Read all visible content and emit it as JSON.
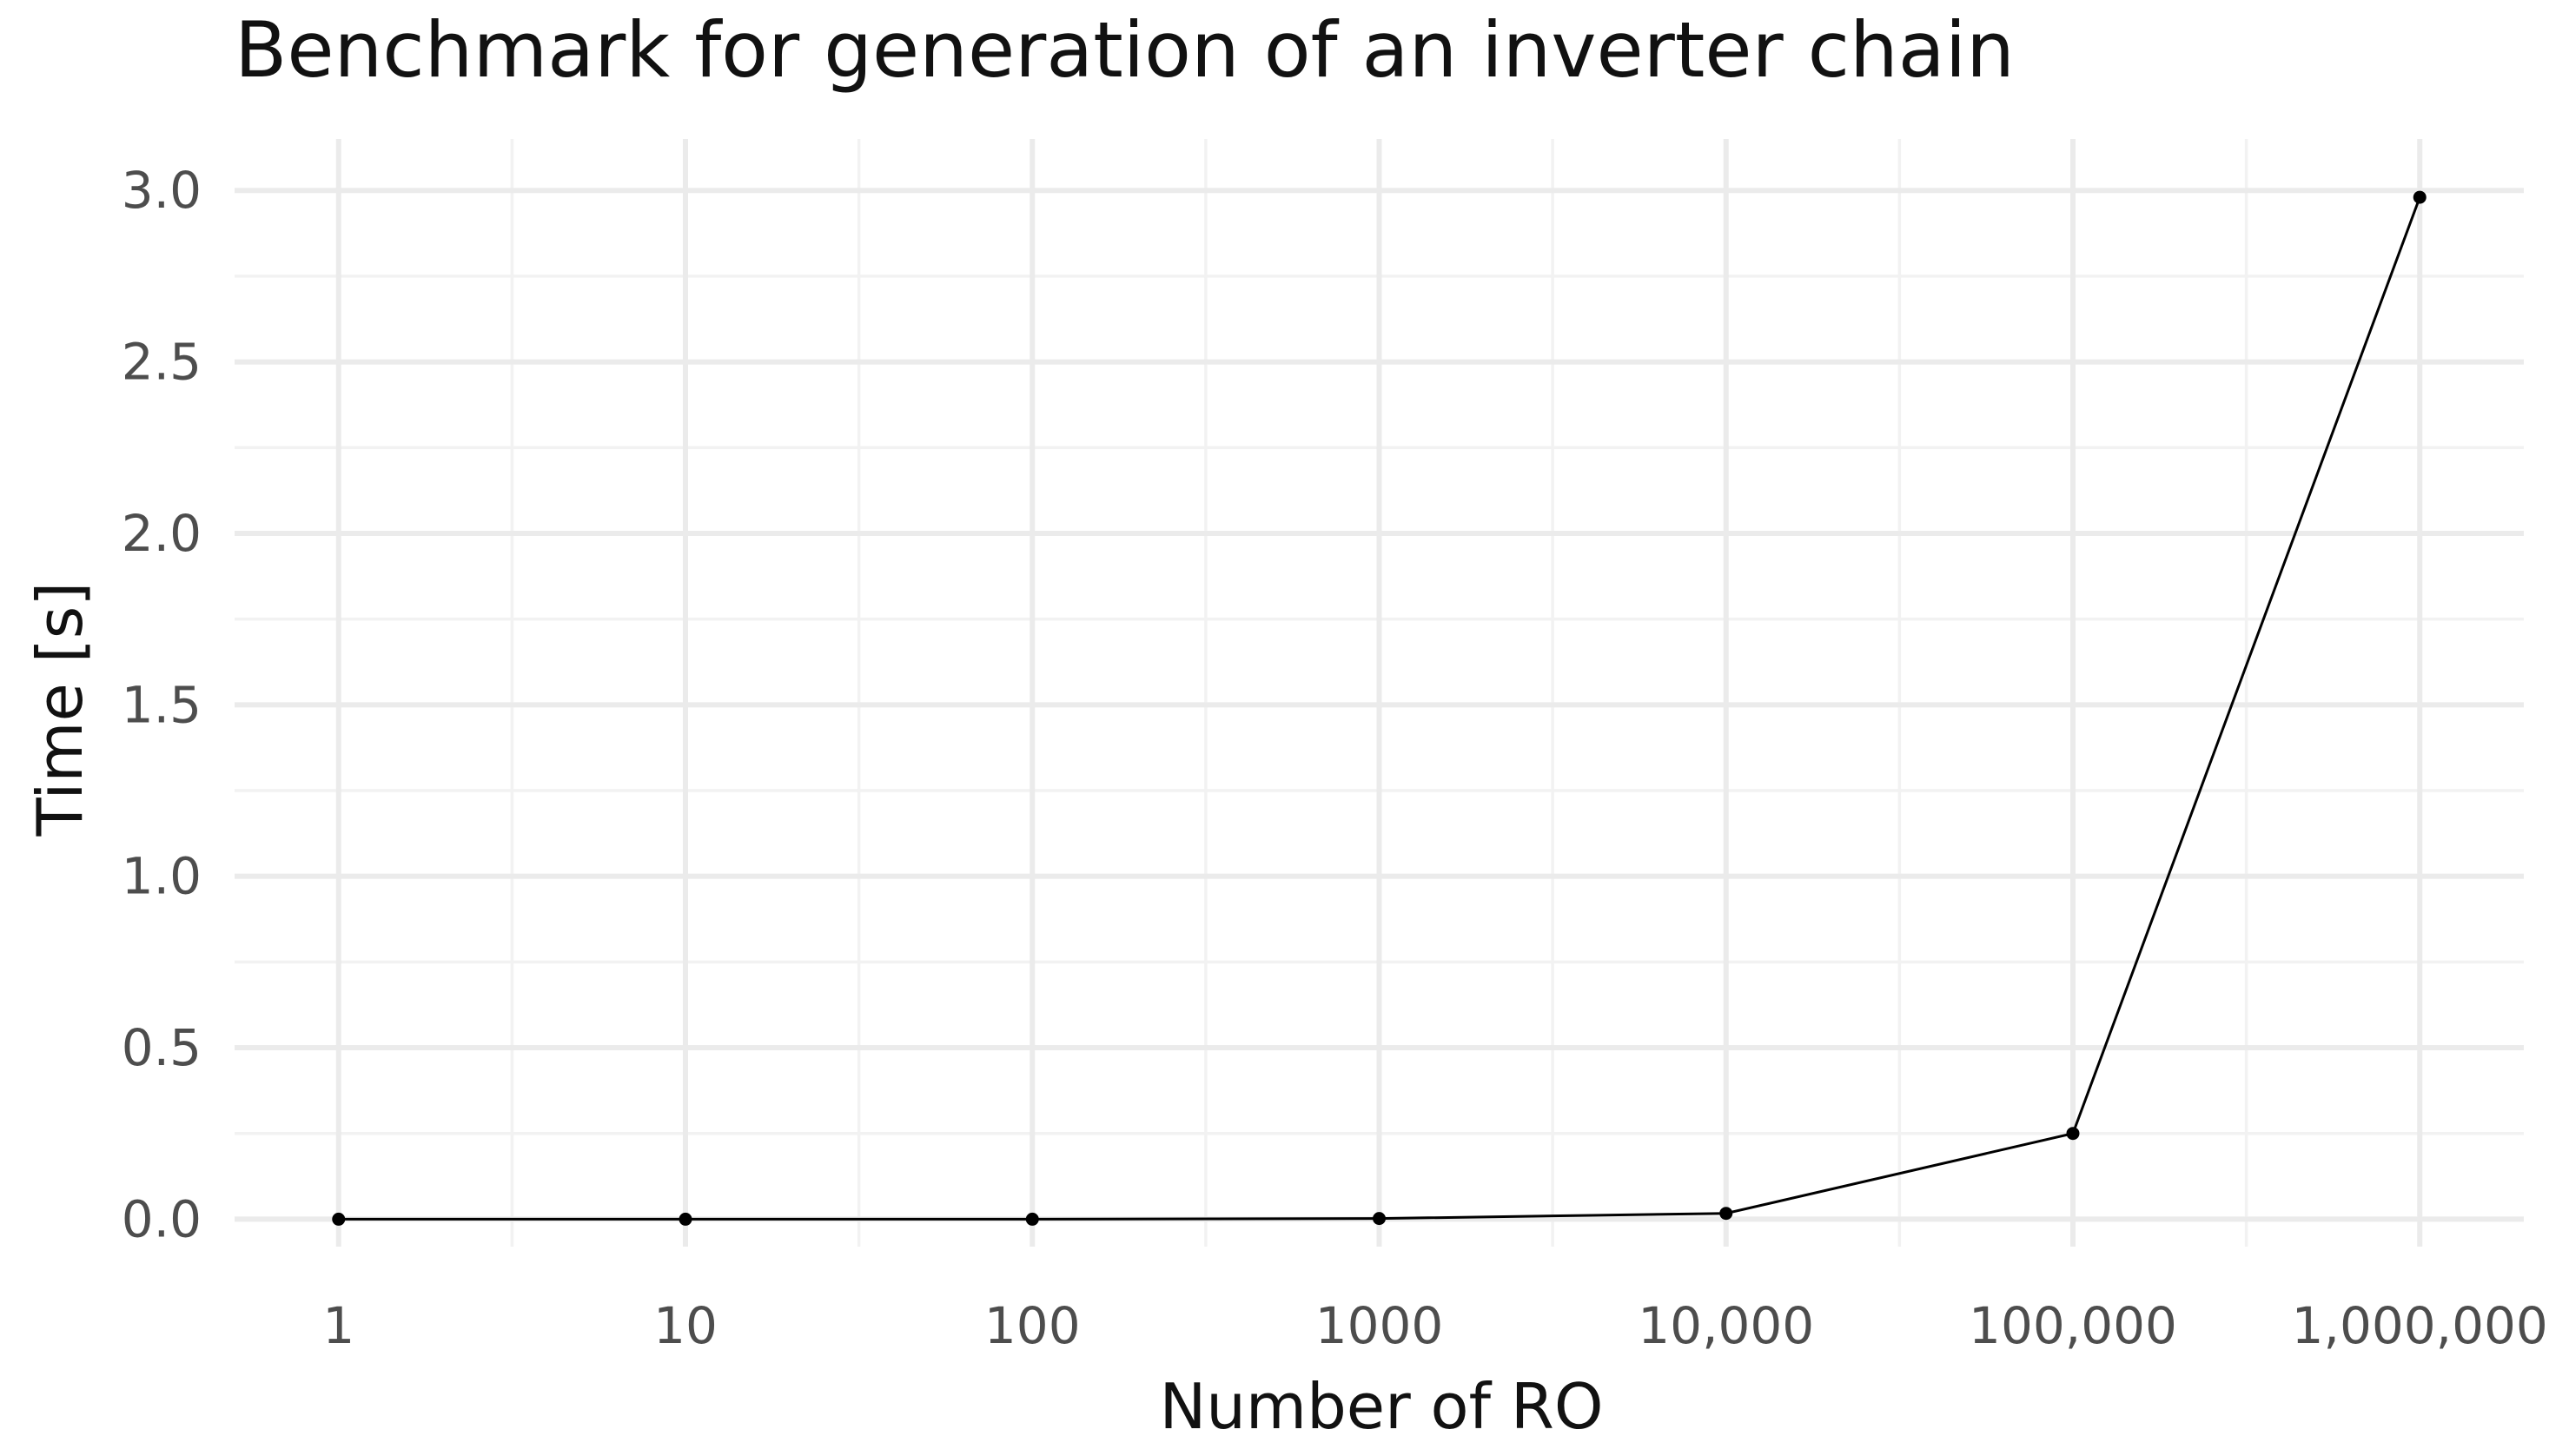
{
  "chart_data": {
    "type": "line",
    "title": "Benchmark for generation of an inverter chain",
    "xlabel": "Number of RO",
    "ylabel": "Time [s]",
    "x_scale": "log10",
    "x": [
      1,
      10,
      100,
      1000,
      10000,
      100000,
      1000000
    ],
    "x_tick_values": [
      1,
      10,
      100,
      1000,
      10000,
      100000,
      1000000
    ],
    "x_tick_labels": [
      "1",
      "10",
      "100",
      "1000",
      "10,000",
      "100,000",
      "1,000,000"
    ],
    "y_ticks": [
      0.0,
      0.5,
      1.0,
      1.5,
      2.0,
      2.5,
      3.0
    ],
    "y_tick_labels": [
      "0.0",
      "0.5",
      "1.0",
      "1.5",
      "2.0",
      "2.5",
      "3.0"
    ],
    "ylim": [
      -0.08,
      3.15
    ],
    "xlim_log10": [
      -0.3,
      6.3
    ],
    "grid": true,
    "legend": "none",
    "series": [
      {
        "values": [
          0.0,
          0.0,
          0.0,
          0.002,
          0.017,
          0.25,
          2.98
        ],
        "color": "#000000",
        "marker": "circle"
      }
    ]
  }
}
